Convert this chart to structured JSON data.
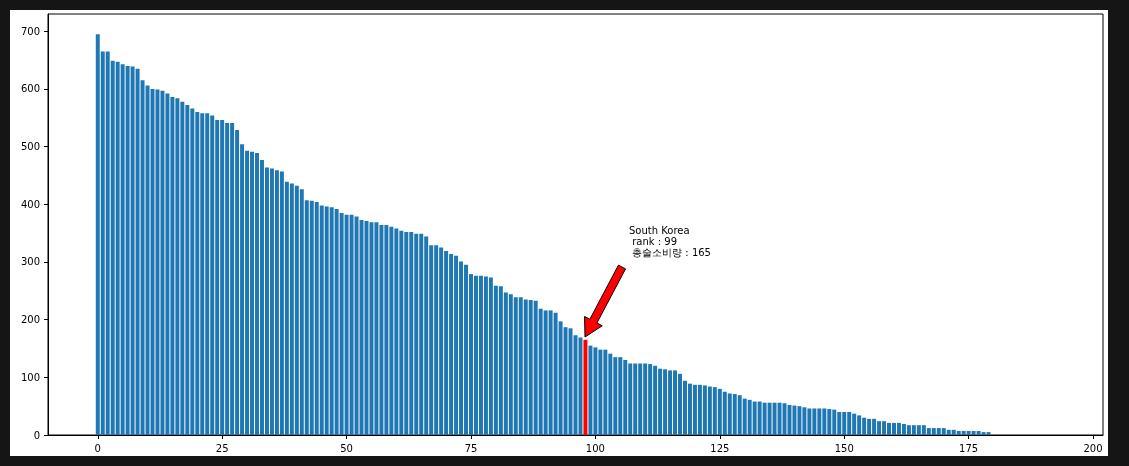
{
  "chart_data": {
    "type": "bar",
    "x": [
      0,
      1,
      2,
      3,
      4,
      5,
      6,
      7,
      8,
      9,
      10,
      11,
      12,
      13,
      14,
      15,
      16,
      17,
      18,
      19,
      20,
      21,
      22,
      23,
      24,
      25,
      26,
      27,
      28,
      29,
      30,
      31,
      32,
      33,
      34,
      35,
      36,
      37,
      38,
      39,
      40,
      41,
      42,
      43,
      44,
      45,
      46,
      47,
      48,
      49,
      50,
      51,
      52,
      53,
      54,
      55,
      56,
      57,
      58,
      59,
      60,
      61,
      62,
      63,
      64,
      65,
      66,
      67,
      68,
      69,
      70,
      71,
      72,
      73,
      74,
      75,
      76,
      77,
      78,
      79,
      80,
      81,
      82,
      83,
      84,
      85,
      86,
      87,
      88,
      89,
      90,
      91,
      92,
      93,
      94,
      95,
      96,
      97,
      98,
      99,
      100,
      101,
      102,
      103,
      104,
      105,
      106,
      107,
      108,
      109,
      110,
      111,
      112,
      113,
      114,
      115,
      116,
      117,
      118,
      119,
      120,
      121,
      122,
      123,
      124,
      125,
      126,
      127,
      128,
      129,
      130,
      131,
      132,
      133,
      134,
      135,
      136,
      137,
      138,
      139,
      140,
      141,
      142,
      143,
      144,
      145,
      146,
      147,
      148,
      149,
      150,
      151,
      152,
      153,
      154,
      155,
      156,
      157,
      158,
      159,
      160,
      161,
      162,
      163,
      164,
      165,
      166,
      167,
      168,
      169,
      170,
      171,
      172,
      173,
      174,
      175,
      176,
      177,
      178,
      179
    ],
    "values": [
      695,
      665,
      665,
      649,
      647,
      643,
      640,
      639,
      635,
      615,
      606,
      600,
      599,
      597,
      592,
      586,
      584,
      578,
      572,
      566,
      560,
      558,
      558,
      554,
      546,
      546,
      541,
      541,
      529,
      504,
      493,
      491,
      489,
      477,
      464,
      462,
      459,
      457,
      439,
      436,
      432,
      426,
      407,
      406,
      404,
      398,
      396,
      395,
      392,
      385,
      382,
      382,
      379,
      373,
      371,
      369,
      369,
      364,
      364,
      361,
      358,
      354,
      352,
      352,
      349,
      349,
      344,
      329,
      329,
      325,
      319,
      314,
      311,
      301,
      295,
      279,
      276,
      276,
      275,
      273,
      259,
      258,
      247,
      244,
      239,
      239,
      235,
      234,
      233,
      219,
      216,
      216,
      212,
      197,
      187,
      185,
      173,
      169,
      165,
      155,
      152,
      148,
      148,
      141,
      135,
      135,
      130,
      124,
      124,
      124,
      124,
      123,
      120,
      115,
      114,
      112,
      112,
      106,
      94,
      89,
      87,
      87,
      86,
      84,
      83,
      80,
      75,
      72,
      71,
      69,
      63,
      61,
      58,
      58,
      56,
      56,
      56,
      56,
      55,
      52,
      51,
      50,
      48,
      46,
      46,
      46,
      46,
      45,
      44,
      40,
      40,
      40,
      37,
      34,
      30,
      28,
      28,
      24,
      24,
      21,
      21,
      21,
      19,
      17,
      17,
      17,
      17,
      12,
      12,
      12,
      12,
      9,
      9,
      7,
      7,
      7,
      7,
      7,
      5,
      5
    ],
    "colors": [
      "#1f77b4",
      "#1f77b4",
      "#1f77b4",
      "#1f77b4",
      "#1f77b4",
      "#1f77b4",
      "#1f77b4",
      "#1f77b4",
      "#1f77b4",
      "#1f77b4",
      "#1f77b4",
      "#1f77b4",
      "#1f77b4",
      "#1f77b4",
      "#1f77b4",
      "#1f77b4",
      "#1f77b4",
      "#1f77b4",
      "#1f77b4",
      "#1f77b4",
      "#1f77b4",
      "#1f77b4",
      "#1f77b4",
      "#1f77b4",
      "#1f77b4",
      "#1f77b4",
      "#1f77b4",
      "#1f77b4",
      "#1f77b4",
      "#1f77b4",
      "#1f77b4",
      "#1f77b4",
      "#1f77b4",
      "#1f77b4",
      "#1f77b4",
      "#1f77b4",
      "#1f77b4",
      "#1f77b4",
      "#1f77b4",
      "#1f77b4",
      "#1f77b4",
      "#1f77b4",
      "#1f77b4",
      "#1f77b4",
      "#1f77b4",
      "#1f77b4",
      "#1f77b4",
      "#1f77b4",
      "#1f77b4",
      "#1f77b4",
      "#1f77b4",
      "#1f77b4",
      "#1f77b4",
      "#1f77b4",
      "#1f77b4",
      "#1f77b4",
      "#1f77b4",
      "#1f77b4",
      "#1f77b4",
      "#1f77b4",
      "#1f77b4",
      "#1f77b4",
      "#1f77b4",
      "#1f77b4",
      "#1f77b4",
      "#1f77b4",
      "#1f77b4",
      "#1f77b4",
      "#1f77b4",
      "#1f77b4",
      "#1f77b4",
      "#1f77b4",
      "#1f77b4",
      "#1f77b4",
      "#1f77b4",
      "#1f77b4",
      "#1f77b4",
      "#1f77b4",
      "#1f77b4",
      "#1f77b4",
      "#1f77b4",
      "#1f77b4",
      "#1f77b4",
      "#1f77b4",
      "#1f77b4",
      "#1f77b4",
      "#1f77b4",
      "#1f77b4",
      "#1f77b4",
      "#1f77b4",
      "#1f77b4",
      "#1f77b4",
      "#1f77b4",
      "#1f77b4",
      "#1f77b4",
      "#1f77b4",
      "#1f77b4",
      "#1f77b4",
      "#ff0000",
      "#1f77b4",
      "#1f77b4",
      "#1f77b4",
      "#1f77b4",
      "#1f77b4",
      "#1f77b4",
      "#1f77b4",
      "#1f77b4",
      "#1f77b4",
      "#1f77b4",
      "#1f77b4",
      "#1f77b4",
      "#1f77b4",
      "#1f77b4",
      "#1f77b4",
      "#1f77b4",
      "#1f77b4",
      "#1f77b4",
      "#1f77b4",
      "#1f77b4",
      "#1f77b4",
      "#1f77b4",
      "#1f77b4",
      "#1f77b4",
      "#1f77b4",
      "#1f77b4",
      "#1f77b4",
      "#1f77b4",
      "#1f77b4",
      "#1f77b4",
      "#1f77b4",
      "#1f77b4",
      "#1f77b4",
      "#1f77b4",
      "#1f77b4",
      "#1f77b4",
      "#1f77b4",
      "#1f77b4",
      "#1f77b4",
      "#1f77b4",
      "#1f77b4",
      "#1f77b4",
      "#1f77b4",
      "#1f77b4",
      "#1f77b4",
      "#1f77b4",
      "#1f77b4",
      "#1f77b4",
      "#1f77b4",
      "#1f77b4",
      "#1f77b4",
      "#1f77b4",
      "#1f77b4",
      "#1f77b4",
      "#1f77b4",
      "#1f77b4",
      "#1f77b4",
      "#1f77b4",
      "#1f77b4",
      "#1f77b4",
      "#1f77b4",
      "#1f77b4",
      "#1f77b4",
      "#1f77b4",
      "#1f77b4",
      "#1f77b4",
      "#1f77b4",
      "#1f77b4",
      "#1f77b4",
      "#1f77b4",
      "#1f77b4",
      "#1f77b4",
      "#1f77b4",
      "#1f77b4",
      "#1f77b4",
      "#1f77b4",
      "#1f77b4",
      "#1f77b4",
      "#1f77b4",
      "#1f77b4",
      "#1f77b4"
    ],
    "xlim": [
      -10,
      202
    ],
    "xticks": [
      0,
      25,
      50,
      75,
      100,
      125,
      150,
      175,
      200
    ],
    "ylim": [
      0,
      730
    ],
    "yticks": [
      0,
      100,
      200,
      300,
      400,
      500,
      600,
      700
    ],
    "annotations": [
      "South Korea\n rank : 99\n 총술소비량 : 165"
    ],
    "grid": false
  }
}
